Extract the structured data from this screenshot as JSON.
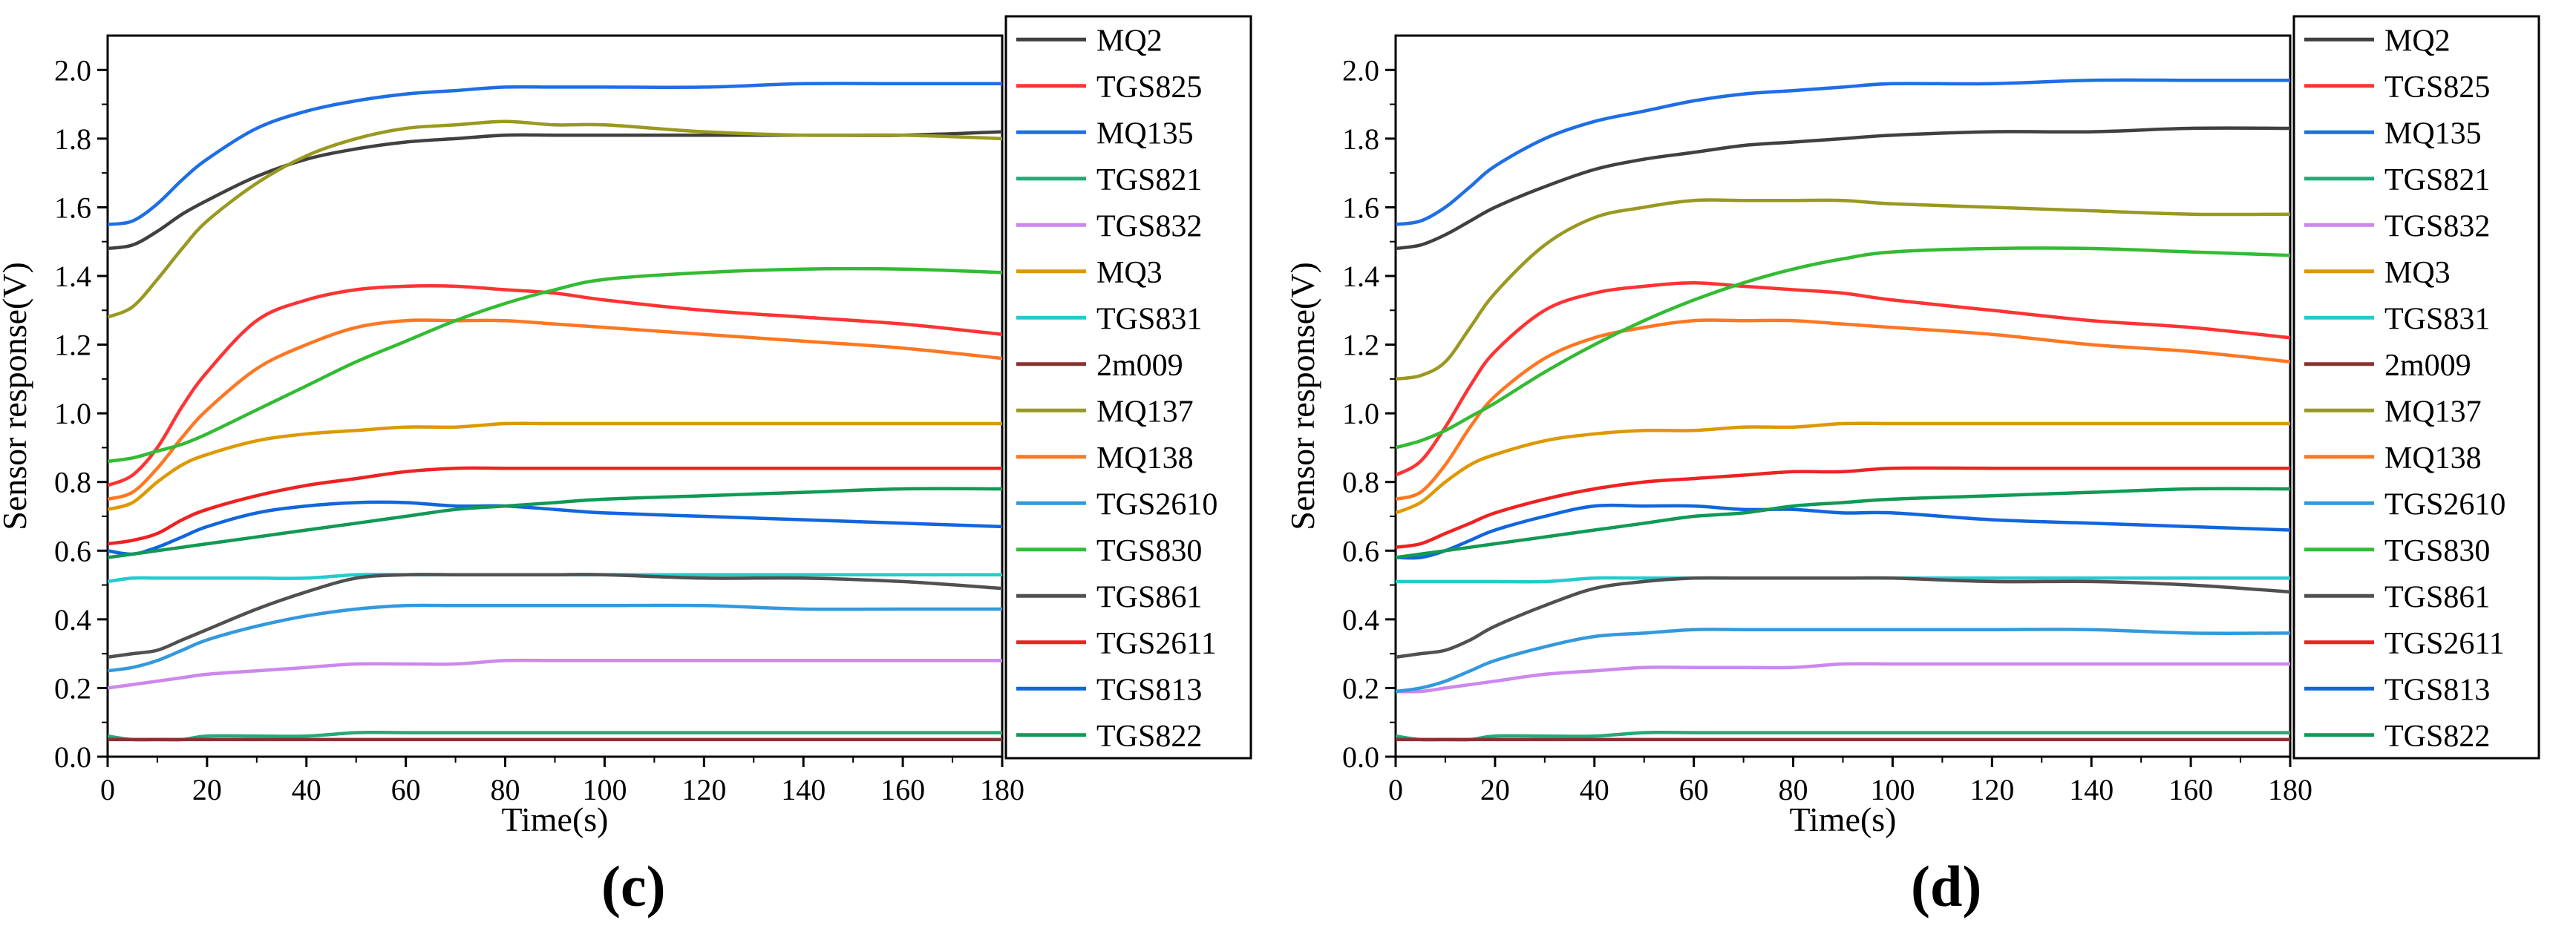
{
  "chart_data": [
    {
      "type": "line",
      "panel_label": "(c)",
      "xlabel": "Time(s)",
      "ylabel": "Sensor response(V)",
      "xlim": [
        0,
        180
      ],
      "ylim": [
        0,
        2.1
      ],
      "xticks": [
        0,
        20,
        40,
        60,
        80,
        100,
        120,
        140,
        160,
        180
      ],
      "xtick_labels": [
        "0",
        "20",
        "40",
        "60",
        "80",
        "100",
        "120",
        "140",
        "160",
        "180"
      ],
      "yticks": [
        0.0,
        0.2,
        0.4,
        0.6,
        0.8,
        1.0,
        1.2,
        1.4,
        1.6,
        1.8,
        2.0
      ],
      "ytick_labels": [
        "0.0",
        "0.2",
        "0.4",
        "0.6",
        "0.8",
        "1.0",
        "1.2",
        "1.4",
        "1.6",
        "1.8",
        "2.0"
      ],
      "legend_position": "right",
      "x": [
        0,
        5,
        10,
        15,
        20,
        30,
        40,
        50,
        60,
        70,
        80,
        90,
        100,
        120,
        140,
        160,
        180
      ],
      "series": [
        {
          "name": "MQ2",
          "color": "#404040",
          "values": [
            1.48,
            1.49,
            1.53,
            1.58,
            1.62,
            1.69,
            1.74,
            1.77,
            1.79,
            1.8,
            1.81,
            1.81,
            1.81,
            1.81,
            1.81,
            1.81,
            1.82
          ]
        },
        {
          "name": "TGS825",
          "color": "#ff3333",
          "values": [
            0.79,
            0.82,
            0.9,
            1.02,
            1.12,
            1.27,
            1.33,
            1.36,
            1.37,
            1.37,
            1.36,
            1.35,
            1.33,
            1.3,
            1.28,
            1.26,
            1.23
          ]
        },
        {
          "name": "MQ135",
          "color": "#1e6ee6",
          "values": [
            1.55,
            1.56,
            1.61,
            1.68,
            1.74,
            1.83,
            1.88,
            1.91,
            1.93,
            1.94,
            1.95,
            1.95,
            1.95,
            1.95,
            1.96,
            1.96,
            1.96
          ]
        },
        {
          "name": "TGS821",
          "color": "#22aa77",
          "values": [
            0.06,
            0.05,
            0.05,
            0.05,
            0.06,
            0.06,
            0.06,
            0.07,
            0.07,
            0.07,
            0.07,
            0.07,
            0.07,
            0.07,
            0.07,
            0.07,
            0.07
          ]
        },
        {
          "name": "TGS832",
          "color": "#cc88ee",
          "values": [
            0.2,
            0.21,
            0.22,
            0.23,
            0.24,
            0.25,
            0.26,
            0.27,
            0.27,
            0.27,
            0.28,
            0.28,
            0.28,
            0.28,
            0.28,
            0.28,
            0.28
          ]
        },
        {
          "name": "MQ3",
          "color": "#dd9900",
          "values": [
            0.72,
            0.74,
            0.8,
            0.85,
            0.88,
            0.92,
            0.94,
            0.95,
            0.96,
            0.96,
            0.97,
            0.97,
            0.97,
            0.97,
            0.97,
            0.97,
            0.97
          ]
        },
        {
          "name": "TGS831",
          "color": "#22cccc",
          "values": [
            0.51,
            0.52,
            0.52,
            0.52,
            0.52,
            0.52,
            0.52,
            0.53,
            0.53,
            0.53,
            0.53,
            0.53,
            0.53,
            0.53,
            0.53,
            0.53,
            0.53
          ]
        },
        {
          "name": "2m009",
          "color": "#883333",
          "values": [
            0.05,
            0.05,
            0.05,
            0.05,
            0.05,
            0.05,
            0.05,
            0.05,
            0.05,
            0.05,
            0.05,
            0.05,
            0.05,
            0.05,
            0.05,
            0.05,
            0.05
          ]
        },
        {
          "name": "MQ137",
          "color": "#999922",
          "values": [
            1.28,
            1.31,
            1.39,
            1.48,
            1.56,
            1.67,
            1.75,
            1.8,
            1.83,
            1.84,
            1.85,
            1.84,
            1.84,
            1.82,
            1.81,
            1.81,
            1.8
          ]
        },
        {
          "name": "MQ138",
          "color": "#ff7722",
          "values": [
            0.75,
            0.77,
            0.84,
            0.93,
            1.01,
            1.13,
            1.2,
            1.25,
            1.27,
            1.27,
            1.27,
            1.26,
            1.25,
            1.23,
            1.21,
            1.19,
            1.16
          ]
        },
        {
          "name": "TGS2610",
          "color": "#3399dd",
          "values": [
            0.25,
            0.26,
            0.28,
            0.31,
            0.34,
            0.38,
            0.41,
            0.43,
            0.44,
            0.44,
            0.44,
            0.44,
            0.44,
            0.44,
            0.43,
            0.43,
            0.43
          ]
        },
        {
          "name": "TGS830",
          "color": "#33bb33",
          "values": [
            0.86,
            0.87,
            0.89,
            0.91,
            0.94,
            1.01,
            1.08,
            1.15,
            1.21,
            1.27,
            1.32,
            1.36,
            1.39,
            1.41,
            1.42,
            1.42,
            1.41
          ]
        },
        {
          "name": "TGS861",
          "color": "#505050",
          "values": [
            0.29,
            0.3,
            0.31,
            0.34,
            0.37,
            0.43,
            0.48,
            0.52,
            0.53,
            0.53,
            0.53,
            0.53,
            0.53,
            0.52,
            0.52,
            0.51,
            0.49
          ]
        },
        {
          "name": "TGS2611",
          "color": "#ee2222",
          "values": [
            0.62,
            0.63,
            0.65,
            0.69,
            0.72,
            0.76,
            0.79,
            0.81,
            0.83,
            0.84,
            0.84,
            0.84,
            0.84,
            0.84,
            0.84,
            0.84,
            0.84
          ]
        },
        {
          "name": "TGS813",
          "color": "#1166dd",
          "values": [
            0.6,
            0.59,
            0.61,
            0.64,
            0.67,
            0.71,
            0.73,
            0.74,
            0.74,
            0.73,
            0.73,
            0.72,
            0.71,
            0.7,
            0.69,
            0.68,
            0.67
          ]
        },
        {
          "name": "TGS822",
          "color": "#119955",
          "values": [
            0.58,
            0.59,
            0.6,
            0.61,
            0.62,
            0.64,
            0.66,
            0.68,
            0.7,
            0.72,
            0.73,
            0.74,
            0.75,
            0.76,
            0.77,
            0.78,
            0.78
          ]
        }
      ]
    },
    {
      "type": "line",
      "panel_label": "(d)",
      "xlabel": "Time(s)",
      "ylabel": "Sensor response(V)",
      "xlim": [
        0,
        180
      ],
      "ylim": [
        0,
        2.1
      ],
      "xticks": [
        0,
        20,
        40,
        60,
        80,
        100,
        120,
        140,
        160,
        180
      ],
      "xtick_labels": [
        "0",
        "20",
        "40",
        "60",
        "80",
        "100",
        "120",
        "140",
        "160",
        "180"
      ],
      "yticks": [
        0.0,
        0.2,
        0.4,
        0.6,
        0.8,
        1.0,
        1.2,
        1.4,
        1.6,
        1.8,
        2.0
      ],
      "ytick_labels": [
        "0.0",
        "0.2",
        "0.4",
        "0.6",
        "0.8",
        "1.0",
        "1.2",
        "1.4",
        "1.6",
        "1.8",
        "2.0"
      ],
      "legend_position": "right",
      "x": [
        0,
        5,
        10,
        15,
        20,
        30,
        40,
        50,
        60,
        70,
        80,
        90,
        100,
        120,
        140,
        160,
        180
      ],
      "series": [
        {
          "name": "MQ2",
          "color": "#404040",
          "values": [
            1.48,
            1.49,
            1.52,
            1.56,
            1.6,
            1.66,
            1.71,
            1.74,
            1.76,
            1.78,
            1.79,
            1.8,
            1.81,
            1.82,
            1.82,
            1.83,
            1.83
          ]
        },
        {
          "name": "TGS825",
          "color": "#ff3333",
          "values": [
            0.82,
            0.86,
            0.96,
            1.08,
            1.18,
            1.3,
            1.35,
            1.37,
            1.38,
            1.37,
            1.36,
            1.35,
            1.33,
            1.3,
            1.27,
            1.25,
            1.22
          ]
        },
        {
          "name": "MQ135",
          "color": "#1e6ee6",
          "values": [
            1.55,
            1.56,
            1.6,
            1.66,
            1.72,
            1.8,
            1.85,
            1.88,
            1.91,
            1.93,
            1.94,
            1.95,
            1.96,
            1.96,
            1.97,
            1.97,
            1.97
          ]
        },
        {
          "name": "TGS821",
          "color": "#22aa77",
          "values": [
            0.06,
            0.05,
            0.05,
            0.05,
            0.06,
            0.06,
            0.06,
            0.07,
            0.07,
            0.07,
            0.07,
            0.07,
            0.07,
            0.07,
            0.07,
            0.07,
            0.07
          ]
        },
        {
          "name": "TGS832",
          "color": "#cc88ee",
          "values": [
            0.19,
            0.19,
            0.2,
            0.21,
            0.22,
            0.24,
            0.25,
            0.26,
            0.26,
            0.26,
            0.26,
            0.27,
            0.27,
            0.27,
            0.27,
            0.27,
            0.27
          ]
        },
        {
          "name": "MQ3",
          "color": "#dd9900",
          "values": [
            0.71,
            0.74,
            0.8,
            0.85,
            0.88,
            0.92,
            0.94,
            0.95,
            0.95,
            0.96,
            0.96,
            0.97,
            0.97,
            0.97,
            0.97,
            0.97,
            0.97
          ]
        },
        {
          "name": "TGS831",
          "color": "#22cccc",
          "values": [
            0.51,
            0.51,
            0.51,
            0.51,
            0.51,
            0.51,
            0.52,
            0.52,
            0.52,
            0.52,
            0.52,
            0.52,
            0.52,
            0.52,
            0.52,
            0.52,
            0.52
          ]
        },
        {
          "name": "2m009",
          "color": "#883333",
          "values": [
            0.05,
            0.05,
            0.05,
            0.05,
            0.05,
            0.05,
            0.05,
            0.05,
            0.05,
            0.05,
            0.05,
            0.05,
            0.05,
            0.05,
            0.05,
            0.05,
            0.05
          ]
        },
        {
          "name": "MQ137",
          "color": "#999922",
          "values": [
            1.1,
            1.11,
            1.15,
            1.25,
            1.35,
            1.49,
            1.57,
            1.6,
            1.62,
            1.62,
            1.62,
            1.62,
            1.61,
            1.6,
            1.59,
            1.58,
            1.58
          ]
        },
        {
          "name": "MQ138",
          "color": "#ff7722",
          "values": [
            0.75,
            0.77,
            0.85,
            0.96,
            1.05,
            1.16,
            1.22,
            1.25,
            1.27,
            1.27,
            1.27,
            1.26,
            1.25,
            1.23,
            1.2,
            1.18,
            1.15
          ]
        },
        {
          "name": "TGS2610",
          "color": "#3399dd",
          "values": [
            0.19,
            0.2,
            0.22,
            0.25,
            0.28,
            0.32,
            0.35,
            0.36,
            0.37,
            0.37,
            0.37,
            0.37,
            0.37,
            0.37,
            0.37,
            0.36,
            0.36
          ]
        },
        {
          "name": "TGS830",
          "color": "#33bb33",
          "values": [
            0.9,
            0.92,
            0.95,
            0.99,
            1.03,
            1.12,
            1.2,
            1.27,
            1.33,
            1.38,
            1.42,
            1.45,
            1.47,
            1.48,
            1.48,
            1.47,
            1.46
          ]
        },
        {
          "name": "TGS861",
          "color": "#505050",
          "values": [
            0.29,
            0.3,
            0.31,
            0.34,
            0.38,
            0.44,
            0.49,
            0.51,
            0.52,
            0.52,
            0.52,
            0.52,
            0.52,
            0.51,
            0.51,
            0.5,
            0.48
          ]
        },
        {
          "name": "TGS2611",
          "color": "#ee2222",
          "values": [
            0.61,
            0.62,
            0.65,
            0.68,
            0.71,
            0.75,
            0.78,
            0.8,
            0.81,
            0.82,
            0.83,
            0.83,
            0.84,
            0.84,
            0.84,
            0.84,
            0.84
          ]
        },
        {
          "name": "TGS813",
          "color": "#1166dd",
          "values": [
            0.58,
            0.58,
            0.6,
            0.63,
            0.66,
            0.7,
            0.73,
            0.73,
            0.73,
            0.72,
            0.72,
            0.71,
            0.71,
            0.69,
            0.68,
            0.67,
            0.66
          ]
        },
        {
          "name": "TGS822",
          "color": "#119955",
          "values": [
            0.58,
            0.59,
            0.6,
            0.61,
            0.62,
            0.64,
            0.66,
            0.68,
            0.7,
            0.71,
            0.73,
            0.74,
            0.75,
            0.76,
            0.77,
            0.78,
            0.78
          ]
        }
      ]
    }
  ]
}
